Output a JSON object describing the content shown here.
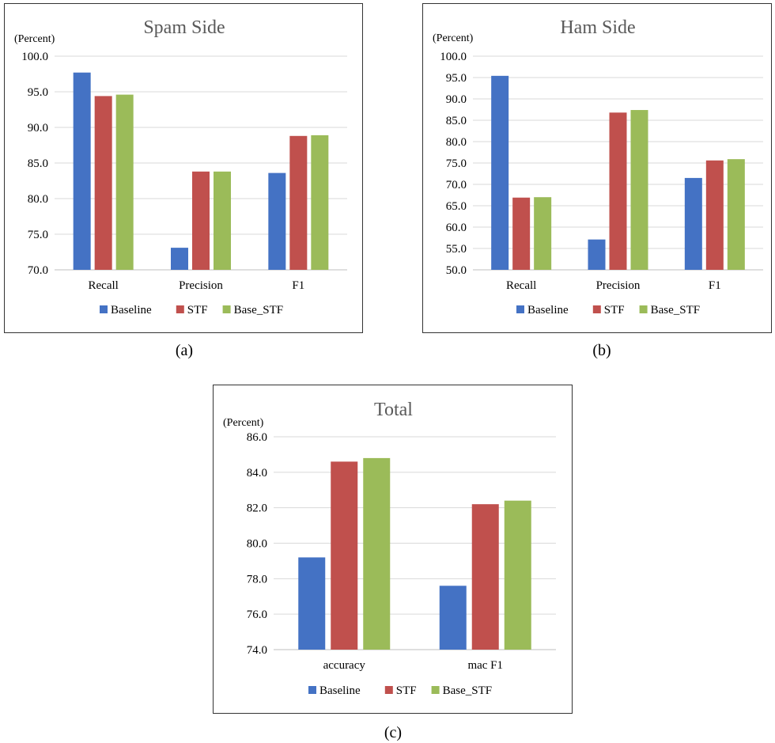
{
  "colors": {
    "Baseline": "#4472c4",
    "STF": "#c0504d",
    "Base_STF": "#9bbb59",
    "grid": "#d9d9d9"
  },
  "captions": {
    "a": "(a)",
    "b": "(b)",
    "c": "(c)"
  },
  "chart_data": [
    {
      "type": "bar",
      "title": "Spam Side",
      "ylabel": "(Percent)",
      "xlabel": "",
      "categories": [
        "Recall",
        "Precision",
        "F1"
      ],
      "ylim": [
        70,
        100
      ],
      "yticks": [
        "70.0",
        "75.0",
        "80.0",
        "85.0",
        "90.0",
        "95.0",
        "100.0"
      ],
      "grid": true,
      "legend": "bottom",
      "series": [
        {
          "name": "Baseline",
          "values": [
            97.7,
            73.1,
            83.6
          ]
        },
        {
          "name": "STF",
          "values": [
            94.4,
            83.8,
            88.8
          ]
        },
        {
          "name": "Base_STF",
          "values": [
            94.6,
            83.8,
            88.9
          ]
        }
      ]
    },
    {
      "type": "bar",
      "title": "Ham Side",
      "ylabel": "(Percent)",
      "xlabel": "",
      "categories": [
        "Recall",
        "Precision",
        "F1"
      ],
      "ylim": [
        50,
        100
      ],
      "yticks": [
        "50.0",
        "55.0",
        "60.0",
        "65.0",
        "70.0",
        "75.0",
        "80.0",
        "85.0",
        "90.0",
        "95.0",
        "100.0"
      ],
      "grid": true,
      "legend": "bottom",
      "series": [
        {
          "name": "Baseline",
          "values": [
            95.4,
            57.1,
            71.5
          ]
        },
        {
          "name": "STF",
          "values": [
            66.9,
            86.8,
            75.6
          ]
        },
        {
          "name": "Base_STF",
          "values": [
            67.0,
            87.4,
            75.9
          ]
        }
      ]
    },
    {
      "type": "bar",
      "title": "Total",
      "ylabel": "(Percent)",
      "xlabel": "",
      "categories": [
        "accuracy",
        "mac F1"
      ],
      "ylim": [
        74,
        86
      ],
      "yticks": [
        "74.0",
        "76.0",
        "78.0",
        "80.0",
        "82.0",
        "84.0",
        "86.0"
      ],
      "grid": true,
      "legend": "bottom",
      "series": [
        {
          "name": "Baseline",
          "values": [
            79.2,
            77.6
          ]
        },
        {
          "name": "STF",
          "values": [
            84.6,
            82.2
          ]
        },
        {
          "name": "Base_STF",
          "values": [
            84.8,
            82.4
          ]
        }
      ]
    }
  ]
}
